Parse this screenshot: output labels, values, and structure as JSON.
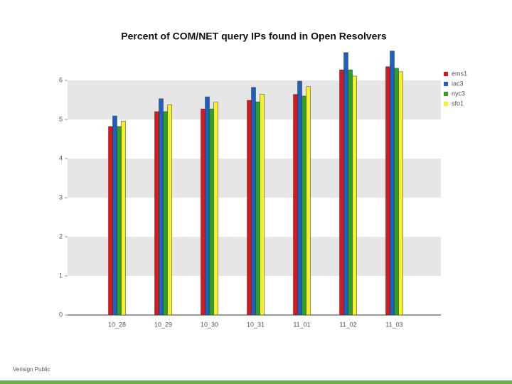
{
  "chart_data": {
    "type": "bar",
    "title": "Percent of COM/NET query IPs found in Open Resolvers",
    "categories": [
      "10_28",
      "10_29",
      "10_30",
      "10_31",
      "11_01",
      "11_02",
      "11_03"
    ],
    "series": [
      {
        "name": "ems1",
        "color": "#d7191c",
        "values": [
          4.82,
          5.2,
          5.27,
          5.49,
          5.64,
          6.27,
          6.35
        ]
      },
      {
        "name": "iac3",
        "color": "#1f5fbf",
        "values": [
          5.09,
          5.53,
          5.58,
          5.82,
          5.98,
          6.71,
          6.75
        ]
      },
      {
        "name": "nyc3",
        "color": "#2ca02c",
        "values": [
          4.82,
          5.2,
          5.27,
          5.45,
          5.6,
          6.27,
          6.31
        ]
      },
      {
        "name": "sfo1",
        "color": "#f5f02a",
        "values": [
          4.96,
          5.38,
          5.44,
          5.65,
          5.84,
          6.11,
          6.22
        ]
      }
    ],
    "ylim": [
      0,
      6.8
    ],
    "yticks": [
      0,
      1,
      2,
      3,
      4,
      5,
      6
    ],
    "grid": true,
    "legend": "right"
  },
  "footer": "Verisign Public"
}
